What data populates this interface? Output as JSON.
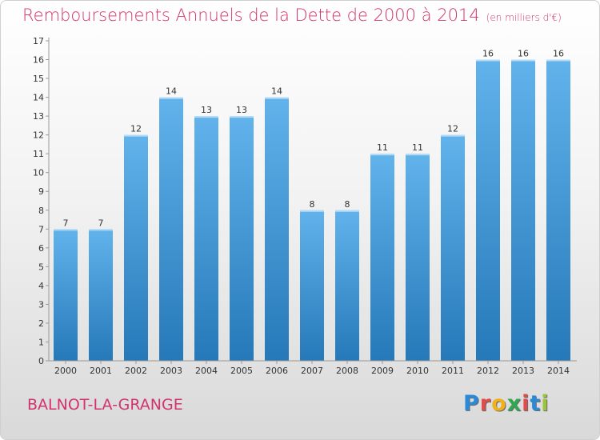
{
  "header": {
    "title": "Remboursements Annuels de la Dette de 2000 à 2014",
    "unit": "(en milliers d'€)"
  },
  "footer": {
    "town": "BALNOT-LA-GRANGE",
    "logo_letters": [
      "P",
      "r",
      "o",
      "x",
      "i",
      "t",
      "i"
    ],
    "logo_colors": [
      "#2b8ad8",
      "#e14b4b",
      "#f0b21b",
      "#2fa84f",
      "#e14b4b",
      "#2b8ad8",
      "#9bc53d"
    ]
  },
  "colors": {
    "bar_light": "#62b3ec",
    "bar_dark": "#2579b8",
    "title": "#d2336e"
  },
  "chart_data": {
    "type": "bar",
    "categories": [
      "2000",
      "2001",
      "2002",
      "2003",
      "2004",
      "2005",
      "2006",
      "2007",
      "2008",
      "2009",
      "2010",
      "2011",
      "2012",
      "2013",
      "2014"
    ],
    "values": [
      7,
      7,
      12,
      14,
      13,
      13,
      14,
      8,
      8,
      11,
      11,
      12,
      16,
      16,
      16
    ],
    "title": "Remboursements Annuels de la Dette de 2000 à 2014",
    "xlabel": "",
    "ylabel": "",
    "ylim": [
      0,
      17
    ],
    "yticks": [
      0,
      1,
      2,
      3,
      4,
      5,
      6,
      7,
      8,
      9,
      10,
      11,
      12,
      13,
      14,
      15,
      16,
      17
    ],
    "grid": false,
    "legend": "none"
  }
}
